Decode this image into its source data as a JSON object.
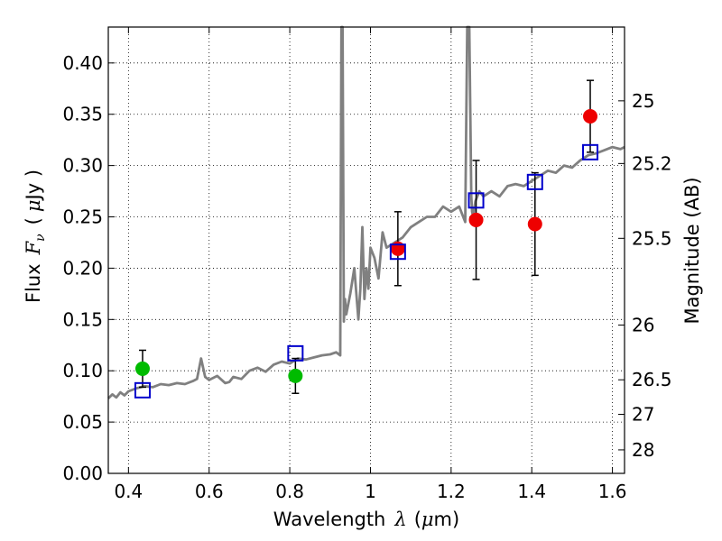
{
  "chart_data": {
    "type": "scatter",
    "xlabel_prefix": "Wavelength",
    "xlabel_symbol": "λ",
    "xlabel_unit_open": "(",
    "xlabel_unit_mu": "μ",
    "xlabel_unit_rest": "m)",
    "ylabel_prefix": "Flux",
    "ylabel_symbol": "F",
    "ylabel_subscript": "ν",
    "ylabel_unit_open": "(",
    "ylabel_unit_mu": "μ",
    "ylabel_unit_rest": "Jy )",
    "y2label": "Magnitude (AB)",
    "xlim": [
      0.35,
      1.63
    ],
    "ylim": [
      0.0,
      0.435
    ],
    "grid": true,
    "x_ticks": [
      {
        "value": 0.4,
        "label": "0.4"
      },
      {
        "value": 0.6,
        "label": "0.6"
      },
      {
        "value": 0.8,
        "label": "0.8"
      },
      {
        "value": 1.0,
        "label": "1"
      },
      {
        "value": 1.2,
        "label": "1.2"
      },
      {
        "value": 1.4,
        "label": "1.4"
      },
      {
        "value": 1.6,
        "label": "1.6"
      }
    ],
    "y_ticks": [
      {
        "value": 0.0,
        "label": "0.00"
      },
      {
        "value": 0.05,
        "label": "0.05"
      },
      {
        "value": 0.1,
        "label": "0.10"
      },
      {
        "value": 0.15,
        "label": "0.15"
      },
      {
        "value": 0.2,
        "label": "0.20"
      },
      {
        "value": 0.25,
        "label": "0.25"
      },
      {
        "value": 0.3,
        "label": "0.30"
      },
      {
        "value": 0.35,
        "label": "0.35"
      },
      {
        "value": 0.4,
        "label": "0.40"
      }
    ],
    "mag_ticks": [
      {
        "mag": 25,
        "label": "25"
      },
      {
        "mag": 25.2,
        "label": "25.2"
      },
      {
        "mag": 25.5,
        "label": "25.5"
      },
      {
        "mag": 26,
        "label": "26"
      },
      {
        "mag": 26.5,
        "label": "26.5"
      },
      {
        "mag": 27,
        "label": "27"
      },
      {
        "mag": 28,
        "label": "28"
      }
    ],
    "model_spectrum": {
      "color": "#808080",
      "x": [
        0.35,
        0.36,
        0.37,
        0.38,
        0.39,
        0.4,
        0.42,
        0.44,
        0.46,
        0.48,
        0.5,
        0.52,
        0.54,
        0.56,
        0.57,
        0.58,
        0.59,
        0.6,
        0.62,
        0.64,
        0.65,
        0.66,
        0.68,
        0.7,
        0.72,
        0.74,
        0.76,
        0.78,
        0.8,
        0.82,
        0.84,
        0.86,
        0.88,
        0.9,
        0.915,
        0.925,
        0.928,
        0.931,
        0.934,
        0.937,
        0.94,
        0.95,
        0.96,
        0.97,
        0.975,
        0.98,
        0.985,
        0.99,
        0.995,
        1.0,
        1.01,
        1.02,
        1.03,
        1.04,
        1.06,
        1.08,
        1.1,
        1.12,
        1.14,
        1.16,
        1.18,
        1.2,
        1.22,
        1.235,
        1.24,
        1.245,
        1.25,
        1.252,
        1.255,
        1.26,
        1.27,
        1.28,
        1.3,
        1.32,
        1.34,
        1.36,
        1.38,
        1.4,
        1.42,
        1.44,
        1.46,
        1.48,
        1.5,
        1.52,
        1.54,
        1.56,
        1.58,
        1.6,
        1.62,
        1.63
      ],
      "y": [
        0.073,
        0.077,
        0.074,
        0.079,
        0.076,
        0.08,
        0.083,
        0.085,
        0.084,
        0.087,
        0.086,
        0.088,
        0.087,
        0.09,
        0.092,
        0.112,
        0.094,
        0.091,
        0.095,
        0.088,
        0.089,
        0.094,
        0.092,
        0.1,
        0.103,
        0.099,
        0.106,
        0.109,
        0.107,
        0.112,
        0.111,
        0.113,
        0.115,
        0.116,
        0.118,
        0.115,
        0.435,
        0.435,
        0.148,
        0.17,
        0.155,
        0.175,
        0.2,
        0.15,
        0.18,
        0.24,
        0.17,
        0.2,
        0.18,
        0.22,
        0.21,
        0.19,
        0.235,
        0.22,
        0.225,
        0.23,
        0.24,
        0.245,
        0.25,
        0.25,
        0.26,
        0.255,
        0.26,
        0.245,
        0.435,
        0.435,
        0.27,
        0.255,
        0.25,
        0.265,
        0.275,
        0.27,
        0.275,
        0.27,
        0.28,
        0.282,
        0.28,
        0.285,
        0.29,
        0.295,
        0.293,
        0.3,
        0.298,
        0.305,
        0.31,
        0.312,
        0.315,
        0.318,
        0.316,
        0.318
      ]
    },
    "series": [
      {
        "marker": "circle",
        "color": "#00bb00",
        "points": [
          {
            "x": 0.435,
            "y": 0.102,
            "err": 0.018
          },
          {
            "x": 0.814,
            "y": 0.095,
            "err": 0.017
          }
        ]
      },
      {
        "marker": "circle",
        "color": "#ee0000",
        "points": [
          {
            "x": 1.068,
            "y": 0.219,
            "err": 0.036
          },
          {
            "x": 1.262,
            "y": 0.247,
            "err": 0.058
          },
          {
            "x": 1.408,
            "y": 0.243,
            "err": 0.05
          },
          {
            "x": 1.545,
            "y": 0.348,
            "err": 0.035
          }
        ]
      },
      {
        "marker": "square",
        "color": "#0000cc",
        "points": [
          {
            "x": 0.435,
            "y": 0.081
          },
          {
            "x": 0.814,
            "y": 0.117
          },
          {
            "x": 1.068,
            "y": 0.216
          },
          {
            "x": 1.262,
            "y": 0.266
          },
          {
            "x": 1.408,
            "y": 0.284
          },
          {
            "x": 1.545,
            "y": 0.313
          }
        ]
      }
    ]
  }
}
